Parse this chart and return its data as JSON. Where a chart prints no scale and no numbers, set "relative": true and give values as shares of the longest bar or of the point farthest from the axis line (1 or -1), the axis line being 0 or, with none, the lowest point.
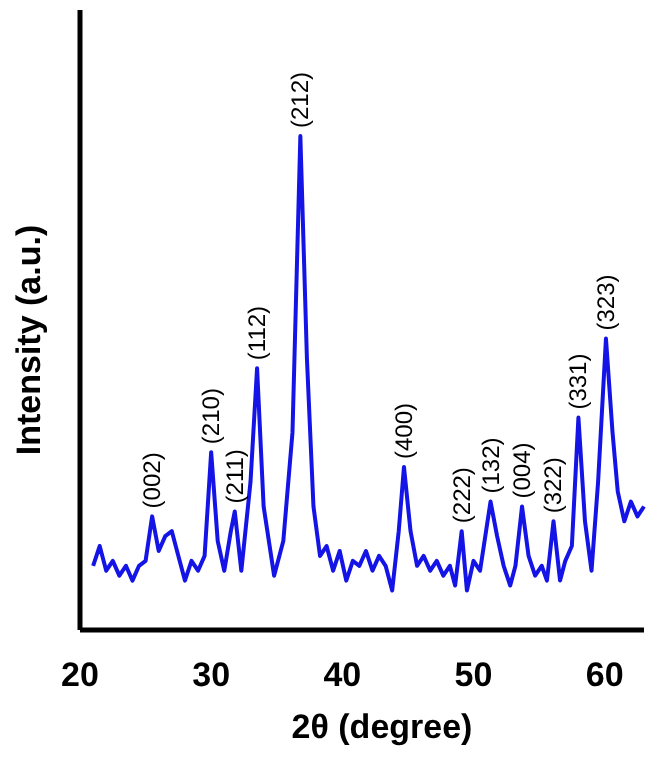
{
  "chart_data": {
    "type": "line",
    "relative": true,
    "xlabel": "2θ (degree)",
    "ylabel": "Intensity (a.u.)",
    "xlim": [
      20,
      63
    ],
    "xticks": [
      20,
      30,
      40,
      50,
      60
    ],
    "grid": false,
    "marker": "none",
    "line_style": "solid",
    "series": [
      {
        "color": "#1414e6",
        "x": [
          21.0,
          21.5,
          22.0,
          22.5,
          23.0,
          23.5,
          24.0,
          24.5,
          25.0,
          25.5,
          26.0,
          26.5,
          27.0,
          27.5,
          28.0,
          28.5,
          29.0,
          29.5,
          30.0,
          30.5,
          31.0,
          31.5,
          31.8,
          32.3,
          33.0,
          33.5,
          34.0,
          34.8,
          35.5,
          36.2,
          36.8,
          37.3,
          37.8,
          38.3,
          38.8,
          39.3,
          39.8,
          40.3,
          40.8,
          41.3,
          41.8,
          42.3,
          42.8,
          43.3,
          43.8,
          44.3,
          44.7,
          45.2,
          45.7,
          46.2,
          46.7,
          47.2,
          47.7,
          48.2,
          48.6,
          49.1,
          49.5,
          50.0,
          50.5,
          51.3,
          51.8,
          52.3,
          52.8,
          53.2,
          53.7,
          54.2,
          54.7,
          55.2,
          55.6,
          56.1,
          56.6,
          57.0,
          57.5,
          58.0,
          58.5,
          59.0,
          59.5,
          60.1,
          60.6,
          61.0,
          61.5,
          62.0,
          62.5,
          63.0
        ],
        "values": [
          0.13,
          0.17,
          0.12,
          0.14,
          0.11,
          0.13,
          0.1,
          0.13,
          0.14,
          0.23,
          0.16,
          0.19,
          0.2,
          0.15,
          0.1,
          0.14,
          0.12,
          0.15,
          0.36,
          0.18,
          0.12,
          0.2,
          0.24,
          0.12,
          0.3,
          0.53,
          0.25,
          0.11,
          0.18,
          0.4,
          1.0,
          0.55,
          0.25,
          0.15,
          0.17,
          0.12,
          0.16,
          0.1,
          0.14,
          0.13,
          0.16,
          0.12,
          0.15,
          0.13,
          0.08,
          0.2,
          0.33,
          0.2,
          0.13,
          0.15,
          0.12,
          0.14,
          0.11,
          0.13,
          0.09,
          0.2,
          0.08,
          0.14,
          0.12,
          0.26,
          0.19,
          0.13,
          0.09,
          0.13,
          0.25,
          0.15,
          0.11,
          0.13,
          0.1,
          0.22,
          0.1,
          0.14,
          0.17,
          0.43,
          0.22,
          0.12,
          0.3,
          0.59,
          0.4,
          0.28,
          0.22,
          0.26,
          0.23,
          0.25
        ]
      }
    ],
    "annotations": [
      {
        "text": "(002)",
        "x": 25.5,
        "y": 0.23
      },
      {
        "text": "(210)",
        "x": 30.0,
        "y": 0.36
      },
      {
        "text": "(211)",
        "x": 31.8,
        "y": 0.24
      },
      {
        "text": "(112)",
        "x": 33.5,
        "y": 0.53
      },
      {
        "text": "(212)",
        "x": 36.8,
        "y": 1.0
      },
      {
        "text": "(400)",
        "x": 44.7,
        "y": 0.33
      },
      {
        "text": "(222)",
        "x": 49.1,
        "y": 0.2
      },
      {
        "text": "(132)",
        "x": 51.3,
        "y": 0.26
      },
      {
        "text": "(004)",
        "x": 53.7,
        "y": 0.25
      },
      {
        "text": "(322)",
        "x": 56.1,
        "y": 0.22
      },
      {
        "text": "(331)",
        "x": 58.0,
        "y": 0.43
      },
      {
        "text": "(323)",
        "x": 60.1,
        "y": 0.59
      }
    ]
  }
}
